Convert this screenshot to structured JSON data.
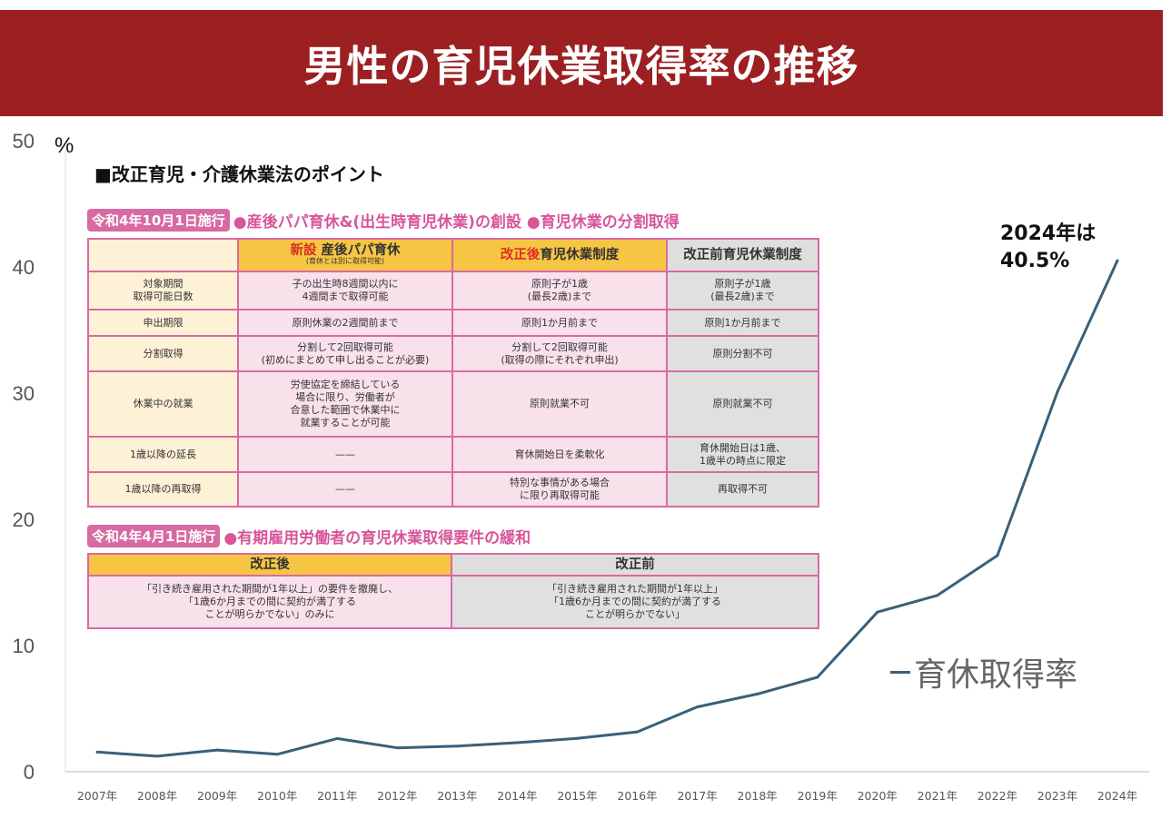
{
  "header": {
    "title": "男性の育児休業取得率の推移"
  },
  "chart_data": {
    "type": "line",
    "title": "男性の育児休業取得率の推移",
    "ylabel": "%",
    "xlabel": "",
    "ylim": [
      0,
      50
    ],
    "yticks": [
      "0",
      "10",
      "20",
      "30",
      "40",
      "50"
    ],
    "ytick_values": [
      0,
      10,
      20,
      30,
      40,
      50
    ],
    "grid": false,
    "legend_position": "bottom-right",
    "categories": [
      "2007年",
      "2008年",
      "2009年",
      "2010年",
      "2011年",
      "2012年",
      "2013年",
      "2014年",
      "2015年",
      "2016年",
      "2017年",
      "2018年",
      "2019年",
      "2020年",
      "2021年",
      "2022年",
      "2023年",
      "2024年"
    ],
    "series": [
      {
        "name": "育休取得率",
        "color": "#3a6079",
        "values": [
          1.56,
          1.23,
          1.72,
          1.38,
          2.63,
          1.89,
          2.03,
          2.3,
          2.65,
          3.16,
          5.14,
          6.16,
          7.48,
          12.65,
          13.97,
          17.13,
          30.1,
          40.5
        ]
      }
    ],
    "annotation": {
      "line1": "2024年は",
      "line2": "40.5%"
    }
  },
  "infobox": {
    "heading": "■改正育児・介護休業法のポイント",
    "section1": {
      "tag": "令和4年10月1日施行",
      "text": "●産後パパ育休&(出生時育児休業)の創設 ●育児休業の分割取得",
      "headers": {
        "new_prefix": "新設",
        "new_title": "産後パパ育休",
        "new_sub": "(育休とは別に取得可能)",
        "after_prefix": "改正後",
        "after_title": "育児休業制度",
        "before": "改正前育児休業制度"
      },
      "rows": [
        {
          "label": [
            "対象期間",
            "取得可能日数"
          ],
          "new": [
            "子の出生時8週間以内に",
            "4週間まで取得可能"
          ],
          "after": [
            "原則子が1歳",
            "(最長2歳)まで"
          ],
          "before": [
            "原則子が1歳",
            "(最長2歳)まで"
          ]
        },
        {
          "label": [
            "申出期限"
          ],
          "new": [
            "原則休業の2週間前まで"
          ],
          "after": [
            "原則1か月前まで"
          ],
          "before": [
            "原則1か月前まで"
          ]
        },
        {
          "label": [
            "分割取得"
          ],
          "new": [
            "分割して2回取得可能",
            "(初めにまとめて申し出ることが必要)"
          ],
          "after": [
            "分割して2回取得可能",
            "(取得の際にそれぞれ申出)"
          ],
          "before": [
            "原則分割不可"
          ]
        },
        {
          "label": [
            "休業中の就業"
          ],
          "new": [
            "労使協定を締結している",
            "場合に限り、労働者が",
            "合意した範囲で休業中に",
            "就業することが可能"
          ],
          "after": [
            "原則就業不可"
          ],
          "before": [
            "原則就業不可"
          ]
        },
        {
          "label": [
            "1歳以降の延長"
          ],
          "new": [
            "——"
          ],
          "after": [
            "育休開始日を柔軟化"
          ],
          "before": [
            "育休開始日は1歳、",
            "1歳半の時点に限定"
          ]
        },
        {
          "label": [
            "1歳以降の再取得"
          ],
          "new": [
            "——"
          ],
          "after": [
            "特別な事情がある場合",
            "に限り再取得可能"
          ],
          "before": [
            "再取得不可"
          ]
        }
      ]
    },
    "section2": {
      "tag": "令和4年4月1日施行",
      "text": "●有期雇用労働者の育児休業取得要件の緩和",
      "headers": {
        "after": "改正後",
        "before": "改正前"
      },
      "after_text": [
        "「引き続き雇用された期間が1年以上」の要件を撤廃し、",
        "「1歳6か月までの間に契約が満了する",
        "ことが明らかでない」のみに"
      ],
      "before_text": [
        "「引き続き雇用された期間が1年以上」",
        "「1歳6か月までの間に契約が満了する",
        "ことが明らかでない」"
      ]
    }
  }
}
